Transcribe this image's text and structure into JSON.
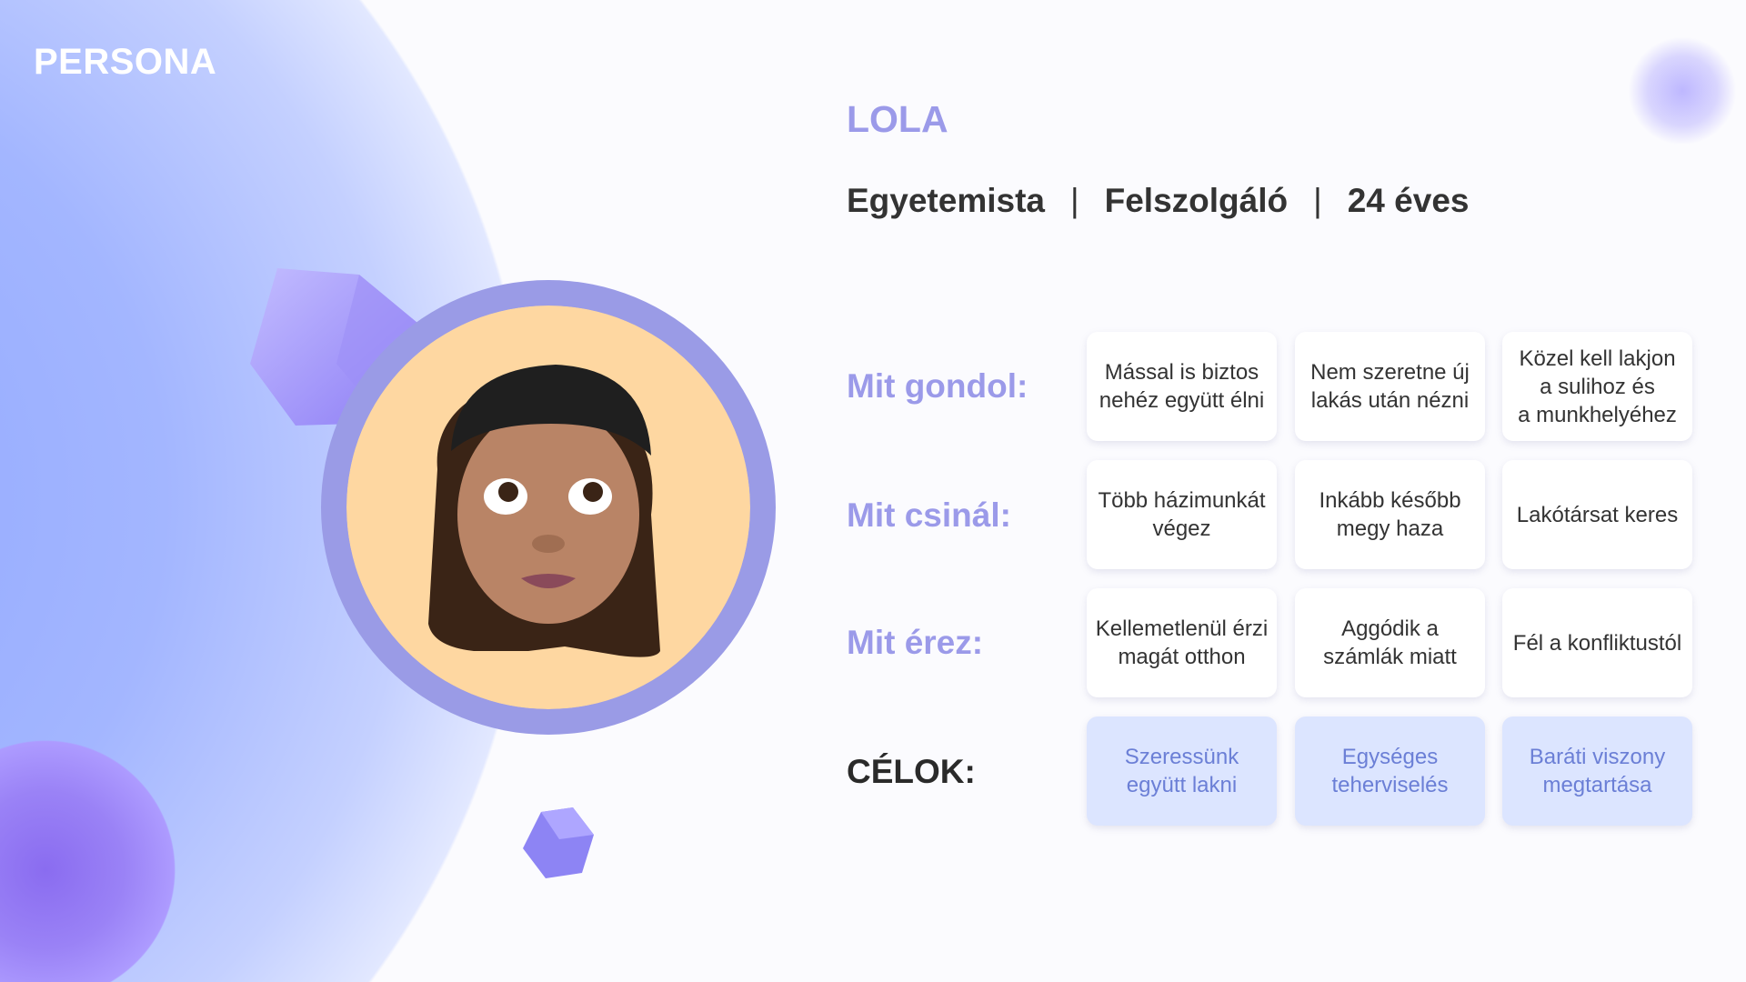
{
  "header": {
    "title": "PERSONA"
  },
  "persona": {
    "name": "LOLA",
    "tags": [
      "Egyetemista",
      "Felszolgáló",
      "24 éves"
    ],
    "separator": "|"
  },
  "rows": [
    {
      "label": "Mit gondol:",
      "cells": [
        "Mással is biztos\nnehéz együtt élni",
        "Nem szeretne új\nlakás után nézni",
        "Közel kell lakjon\na sulihoz és\na munkhelyéhez"
      ]
    },
    {
      "label": "Mit csinál:",
      "cells": [
        "Több házimunkát\nvégez",
        "Inkább később\nmegy haza",
        "Lakótársat keres"
      ]
    },
    {
      "label": "Mit érez:",
      "cells": [
        "Kellemetlenül érzi\nmagát otthon",
        "Aggódik a\nszámlák miatt",
        "Fél a konfliktustól"
      ]
    },
    {
      "label": "CÉLOK:",
      "cells": [
        "Szeressünk\negyütt lakni",
        "Egységes\nteherviselés",
        "Baráti viszony\nmegtartása"
      ]
    }
  ],
  "colors": {
    "accent": "#9b9ae9",
    "goal_bg": "#dce5ff",
    "goal_text": "#6b7fd6",
    "avatar_bg": "#fed7a1"
  },
  "avatar": {
    "icon": "memoji-avatar"
  }
}
